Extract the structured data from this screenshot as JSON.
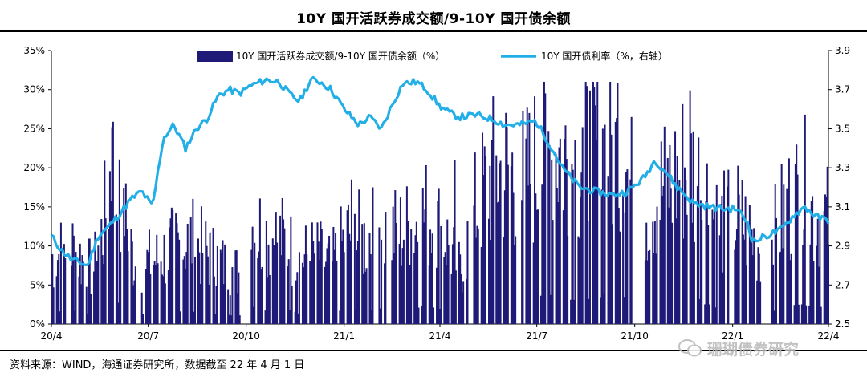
{
  "title": "10Y 国开活跃券成交额/9-10Y 国开债余额",
  "source": "资料来源：WIND，海通证券研究所，数据截至 22 年 4 月 1 日",
  "watermark": "珊瑚债券研究",
  "colors": {
    "bar": "#1f1a78",
    "line": "#22aee6",
    "axis": "#000000"
  },
  "chart_data": {
    "type": "bar+line",
    "x_ticks": [
      "20/4",
      "20/7",
      "20/10",
      "21/1",
      "21/4",
      "21/7",
      "21/10",
      "22/1",
      "22/4"
    ],
    "y_left": {
      "min": 0,
      "max": 35,
      "ticks": [
        "0%",
        "5%",
        "10%",
        "15%",
        "20%",
        "25%",
        "30%",
        "35%"
      ]
    },
    "y_right": {
      "min": 2.5,
      "max": 3.9,
      "ticks": [
        "2.5",
        "2.7",
        "2.9",
        "3.1",
        "3.3",
        "3.5",
        "3.7",
        "3.9"
      ]
    },
    "legend": [
      {
        "name": "10Y 国开活跃券成交额/9-10Y 国开债余额（%）",
        "kind": "bar"
      },
      {
        "name": "10Y 国开债利率（%，右轴）",
        "kind": "line"
      }
    ],
    "bar_anchors": [
      [
        "2020-04-01",
        10
      ],
      [
        "2020-04-20",
        12
      ],
      [
        "2020-05-10",
        8
      ],
      [
        "2020-05-20",
        15
      ],
      [
        "2020-05-28",
        25
      ],
      [
        "2020-06-05",
        16
      ],
      [
        "2020-06-20",
        9
      ],
      [
        "2020-07-10",
        10
      ],
      [
        "2020-07-25",
        12
      ],
      [
        "2020-08-10",
        13
      ],
      [
        "2020-08-25",
        11
      ],
      [
        "2020-09-10",
        9
      ],
      [
        "2020-09-25",
        8
      ],
      [
        "2020-10-05",
        15.5
      ],
      [
        "2020-10-20",
        14
      ],
      [
        "2020-11-05",
        13
      ],
      [
        "2020-11-20",
        10
      ],
      [
        "2020-12-05",
        11
      ],
      [
        "2020-12-20",
        9
      ],
      [
        "2021-01-05",
        14
      ],
      [
        "2021-01-20",
        13
      ],
      [
        "2021-02-05",
        15
      ],
      [
        "2021-02-20",
        14
      ],
      [
        "2021-03-05",
        15
      ],
      [
        "2021-03-20",
        17
      ],
      [
        "2021-04-05",
        14
      ],
      [
        "2021-04-20",
        8
      ],
      [
        "2021-05-05",
        18
      ],
      [
        "2021-05-20",
        23
      ],
      [
        "2021-06-05",
        24
      ],
      [
        "2021-06-20",
        22
      ],
      [
        "2021-07-05",
        26
      ],
      [
        "2021-07-20",
        27
      ],
      [
        "2021-08-05",
        25
      ],
      [
        "2021-08-20",
        26
      ],
      [
        "2021-09-05",
        27
      ],
      [
        "2021-09-20",
        25
      ],
      [
        "2021-10-05",
        18
      ],
      [
        "2021-10-20",
        20
      ],
      [
        "2021-11-05",
        22
      ],
      [
        "2021-11-20",
        25
      ],
      [
        "2021-12-05",
        21
      ],
      [
        "2021-12-20",
        15
      ],
      [
        "2022-01-05",
        17
      ],
      [
        "2022-01-20",
        13
      ],
      [
        "2022-02-05",
        12
      ],
      [
        "2022-02-20",
        18
      ],
      [
        "2022-03-05",
        20
      ],
      [
        "2022-03-20",
        17
      ],
      [
        "2022-04-01",
        16
      ]
    ],
    "bar_spikes": [
      [
        "2020-05-28",
        25.2
      ],
      [
        "2020-06-10",
        18
      ],
      [
        "2020-10-05",
        15.8
      ],
      [
        "2021-01-08",
        18.5
      ],
      [
        "2021-01-28",
        17.5
      ],
      [
        "2021-04-10",
        20.5
      ],
      [
        "2021-04-15",
        21
      ],
      [
        "2021-07-10",
        29.4
      ],
      [
        "2021-08-15",
        28.4
      ],
      [
        "2021-09-15",
        30.8
      ],
      [
        "2021-10-08",
        27.5
      ],
      [
        "2021-11-22",
        29.9
      ],
      [
        "2022-03-10",
        26.8
      ]
    ],
    "bar_gaps": [
      "2020-04-17",
      "2020-06-22",
      "2020-09-30",
      "2020-10-03",
      "2021-01-31",
      "2021-02-12",
      "2021-04-30",
      "2021-06-14",
      "2021-10-01",
      "2021-10-06",
      "2021-12-31",
      "2022-01-30",
      "2022-02-04"
    ],
    "line": [
      [
        "2020-04-01",
        2.95
      ],
      [
        "2020-04-10",
        2.88
      ],
      [
        "2020-04-20",
        2.83
      ],
      [
        "2020-05-05",
        2.8
      ],
      [
        "2020-05-15",
        2.95
      ],
      [
        "2020-05-25",
        3.0
      ],
      [
        "2020-06-05",
        3.07
      ],
      [
        "2020-06-15",
        3.14
      ],
      [
        "2020-06-25",
        3.18
      ],
      [
        "2020-07-05",
        3.1
      ],
      [
        "2020-07-15",
        3.45
      ],
      [
        "2020-07-25",
        3.52
      ],
      [
        "2020-08-05",
        3.4
      ],
      [
        "2020-08-15",
        3.5
      ],
      [
        "2020-08-25",
        3.55
      ],
      [
        "2020-09-05",
        3.67
      ],
      [
        "2020-09-15",
        3.7
      ],
      [
        "2020-09-25",
        3.68
      ],
      [
        "2020-10-05",
        3.72
      ],
      [
        "2020-10-20",
        3.75
      ],
      [
        "2020-11-01",
        3.74
      ],
      [
        "2020-11-10",
        3.68
      ],
      [
        "2020-11-20",
        3.64
      ],
      [
        "2020-12-01",
        3.75
      ],
      [
        "2020-12-10",
        3.74
      ],
      [
        "2020-12-20",
        3.7
      ],
      [
        "2021-01-01",
        3.6
      ],
      [
        "2021-01-15",
        3.52
      ],
      [
        "2021-01-25",
        3.56
      ],
      [
        "2021-02-05",
        3.5
      ],
      [
        "2021-02-15",
        3.62
      ],
      [
        "2021-02-25",
        3.73
      ],
      [
        "2021-03-10",
        3.74
      ],
      [
        "2021-03-20",
        3.7
      ],
      [
        "2021-03-31",
        3.62
      ],
      [
        "2021-04-10",
        3.58
      ],
      [
        "2021-04-20",
        3.56
      ],
      [
        "2021-05-05",
        3.57
      ],
      [
        "2021-05-20",
        3.55
      ],
      [
        "2021-06-01",
        3.52
      ],
      [
        "2021-06-15",
        3.52
      ],
      [
        "2021-06-30",
        3.54
      ],
      [
        "2021-07-10",
        3.45
      ],
      [
        "2021-07-25",
        3.3
      ],
      [
        "2021-08-10",
        3.2
      ],
      [
        "2021-08-25",
        3.18
      ],
      [
        "2021-09-10",
        3.16
      ],
      [
        "2021-09-25",
        3.18
      ],
      [
        "2021-10-10",
        3.25
      ],
      [
        "2021-10-20",
        3.34
      ],
      [
        "2021-10-30",
        3.28
      ],
      [
        "2021-11-10",
        3.2
      ],
      [
        "2021-11-25",
        3.12
      ],
      [
        "2021-12-10",
        3.1
      ],
      [
        "2021-12-25",
        3.09
      ],
      [
        "2022-01-05",
        3.09
      ],
      [
        "2022-01-15",
        3.02
      ],
      [
        "2022-01-20",
        2.92
      ],
      [
        "2022-02-01",
        2.95
      ],
      [
        "2022-02-15",
        2.98
      ],
      [
        "2022-02-28",
        3.06
      ],
      [
        "2022-03-10",
        3.1
      ],
      [
        "2022-03-20",
        3.05
      ],
      [
        "2022-04-01",
        3.03
      ]
    ]
  }
}
